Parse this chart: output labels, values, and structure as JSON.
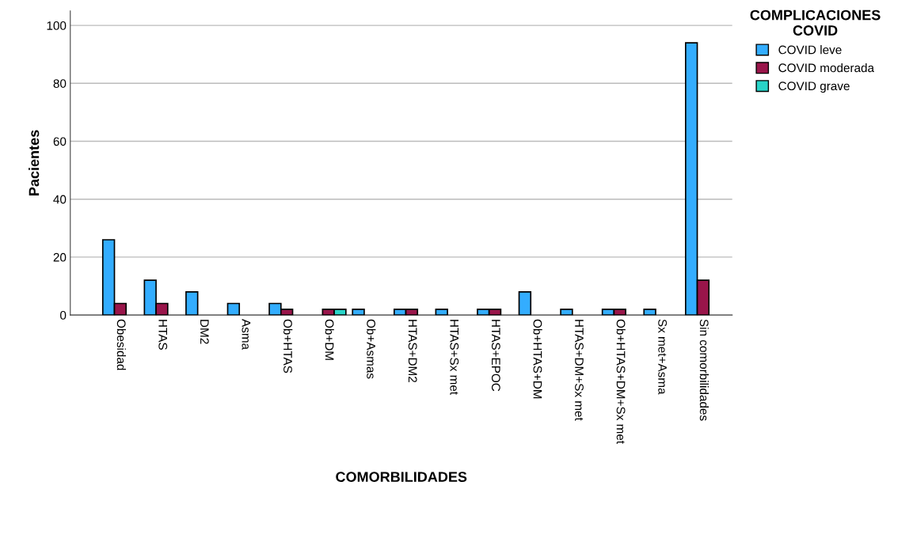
{
  "chart_data": {
    "type": "bar",
    "xlabel": "COMORBILIDADES",
    "ylabel": "Pacientes",
    "legend_title": "COMPLICACIONES\nCOVID",
    "categories": [
      "Obesidad",
      "HTAS",
      "DM2",
      "Asma",
      "Ob+HTAS",
      "Ob+DM",
      "Ob+Asmas",
      "HTAS+DM2",
      "HTAS+Sx met",
      "HTAS+EPOC",
      "Ob+HTAS+DM",
      "HTAS+DM+Sx met",
      "Ob+HTAS+DM+Sx met",
      "Sx met+Asma",
      "Sin comorbilidades"
    ],
    "series": [
      {
        "name": "COVID leve",
        "color": "#33adff",
        "values": [
          26,
          12,
          8,
          4,
          4,
          null,
          2,
          2,
          2,
          2,
          8,
          2,
          2,
          2,
          94
        ]
      },
      {
        "name": "COVID moderada",
        "color": "#99154a",
        "values": [
          4,
          4,
          null,
          null,
          2,
          2,
          null,
          2,
          null,
          2,
          null,
          null,
          2,
          null,
          12
        ]
      },
      {
        "name": "COVID grave",
        "color": "#29d4c8",
        "values": [
          null,
          null,
          null,
          null,
          null,
          2,
          null,
          null,
          null,
          null,
          null,
          null,
          null,
          null,
          null
        ]
      }
    ],
    "ylim": [
      0,
      105
    ],
    "yticks": [
      0,
      20,
      40,
      60,
      80,
      100
    ],
    "grid": "y",
    "legend": "top right"
  }
}
